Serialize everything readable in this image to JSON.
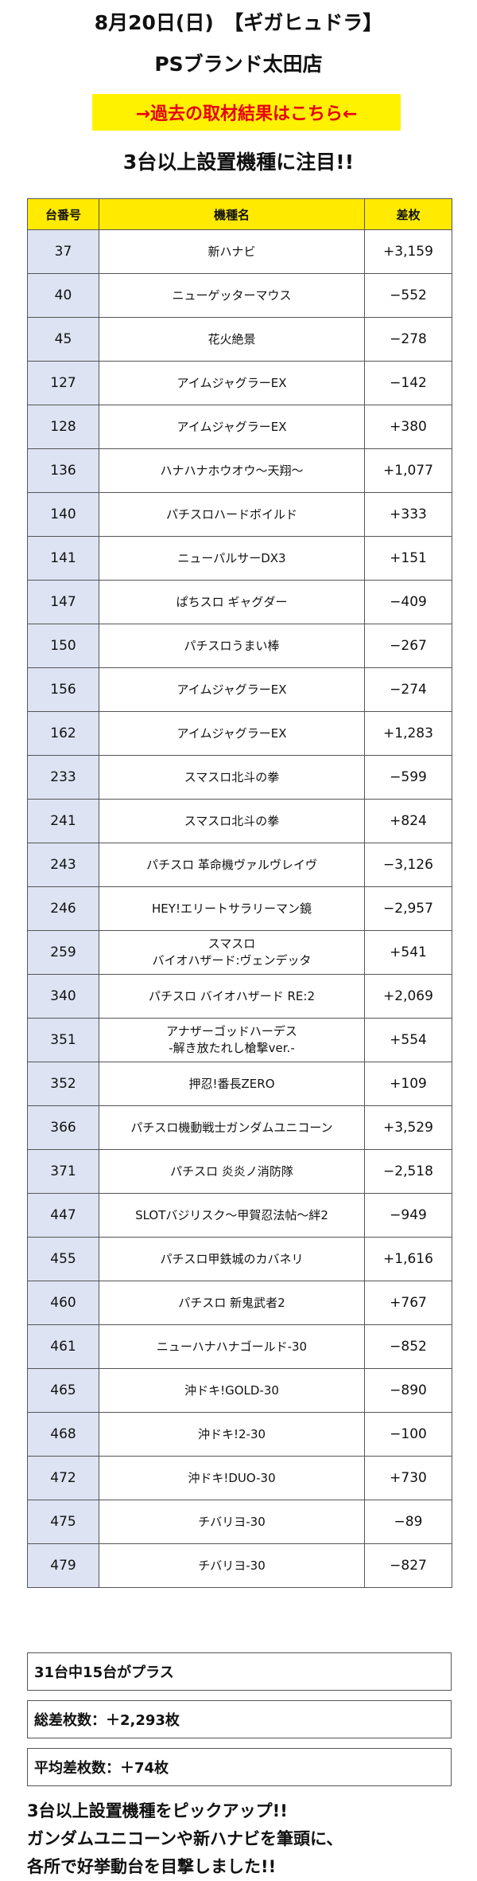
{
  "header": {
    "date_line": "8月20日(日)　【ギガヒュドラ】",
    "store": "PSブランド太田店",
    "past_link": "→過去の取材結果はこちら←"
  },
  "section_title": "3台以上設置機種に注目!!",
  "table": {
    "columns": [
      "台番号",
      "機種名",
      "差枚"
    ],
    "rows": [
      {
        "num": "37",
        "model": "新ハナビ",
        "diff": "+3,159"
      },
      {
        "num": "40",
        "model": "ニューゲッターマウス",
        "diff": "−552"
      },
      {
        "num": "45",
        "model": "花火絶景",
        "diff": "−278"
      },
      {
        "num": "127",
        "model": "アイムジャグラーEX",
        "diff": "−142"
      },
      {
        "num": "128",
        "model": "アイムジャグラーEX",
        "diff": "+380"
      },
      {
        "num": "136",
        "model": "ハナハナホウオウ〜天翔〜",
        "diff": "+1,077"
      },
      {
        "num": "140",
        "model": "パチスロハードボイルド",
        "diff": "+333"
      },
      {
        "num": "141",
        "model": "ニューパルサーDX3",
        "diff": "+151"
      },
      {
        "num": "147",
        "model": "ぱちスロ ギャグダー",
        "diff": "−409"
      },
      {
        "num": "150",
        "model": "パチスロうまい棒",
        "diff": "−267"
      },
      {
        "num": "156",
        "model": "アイムジャグラーEX",
        "diff": "−274"
      },
      {
        "num": "162",
        "model": "アイムジャグラーEX",
        "diff": "+1,283"
      },
      {
        "num": "233",
        "model": "スマスロ北斗の拳",
        "diff": "−599"
      },
      {
        "num": "241",
        "model": "スマスロ北斗の拳",
        "diff": "+824"
      },
      {
        "num": "243",
        "model": "パチスロ 革命機ヴァルヴレイヴ",
        "diff": "−3,126"
      },
      {
        "num": "246",
        "model": "HEY!エリートサラリーマン鏡",
        "diff": "−2,957"
      },
      {
        "num": "259",
        "model": "スマスロ\nバイオハザード:ヴェンデッタ",
        "diff": "+541"
      },
      {
        "num": "340",
        "model": "パチスロ バイオハザード RE:2",
        "diff": "+2,069"
      },
      {
        "num": "351",
        "model": "アナザーゴッドハーデス\n-解き放たれし槍撃ver.-",
        "diff": "+554"
      },
      {
        "num": "352",
        "model": "押忍!番長ZERO",
        "diff": "+109"
      },
      {
        "num": "366",
        "model": "パチスロ機動戦士ガンダムユニコーン",
        "diff": "+3,529"
      },
      {
        "num": "371",
        "model": "パチスロ 炎炎ノ消防隊",
        "diff": "−2,518"
      },
      {
        "num": "447",
        "model": "SLOTバジリスク〜甲賀忍法帖〜絆2",
        "diff": "−949"
      },
      {
        "num": "455",
        "model": "パチスロ甲鉄城のカバネリ",
        "diff": "+1,616"
      },
      {
        "num": "460",
        "model": "パチスロ 新鬼武者2",
        "diff": "+767"
      },
      {
        "num": "461",
        "model": "ニューハナハナゴールド-30",
        "diff": "−852"
      },
      {
        "num": "465",
        "model": "沖ドキ!GOLD-30",
        "diff": "−890"
      },
      {
        "num": "468",
        "model": "沖ドキ!2-30",
        "diff": "−100"
      },
      {
        "num": "472",
        "model": "沖ドキ!DUO-30",
        "diff": "+730"
      },
      {
        "num": "475",
        "model": "チバリヨ-30",
        "diff": "−89"
      },
      {
        "num": "479",
        "model": "チバリヨ-30",
        "diff": "−827"
      }
    ]
  },
  "summary": {
    "plus_count": "31台中15台がプラス",
    "total": "総差枚数：＋2,293枚",
    "average": "平均差枚数：＋74枚"
  },
  "comment": [
    "3台以上設置機種をピックアップ!!",
    "ガンダムユニコーンや新ハナビを筆頭に、",
    "各所で好挙動台を目撃しました!!"
  ],
  "colors": {
    "header_bg": "#ffea00",
    "num_cell_bg": "#dde3f2",
    "link_bg": "#fff200",
    "link_text": "#e60012"
  }
}
